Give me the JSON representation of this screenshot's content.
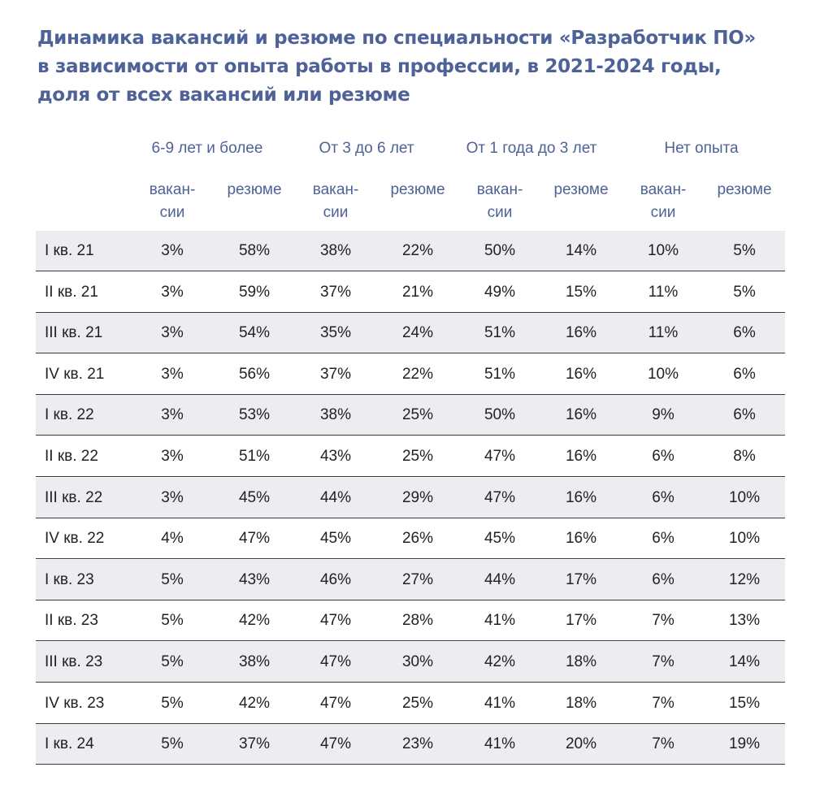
{
  "chart_data": {
    "type": "table",
    "title_lines": [
      "Динамика вакансий и резюме по специальности «Разработчик ПО»",
      "в зависимости от опыта работы в профессии, в 2021-2024 годы,",
      "доля от всех вакансий или резюме"
    ],
    "groups": [
      "6-9 лет и более",
      "От 3 до 6 лет",
      "От 1 года до 3 лет",
      "Нет опыта"
    ],
    "subheaders": [
      "вакан-\nсии",
      "резюме"
    ],
    "rows": [
      {
        "label": "I кв. 21",
        "values": [
          "3%",
          "58%",
          "38%",
          "22%",
          "50%",
          "14%",
          "10%",
          "5%"
        ]
      },
      {
        "label": "II кв. 21",
        "values": [
          "3%",
          "59%",
          "37%",
          "21%",
          "49%",
          "15%",
          "11%",
          "5%"
        ]
      },
      {
        "label": "III кв. 21",
        "values": [
          "3%",
          "54%",
          "35%",
          "24%",
          "51%",
          "16%",
          "11%",
          "6%"
        ]
      },
      {
        "label": "IV кв. 21",
        "values": [
          "3%",
          "56%",
          "37%",
          "22%",
          "51%",
          "16%",
          "10%",
          "6%"
        ]
      },
      {
        "label": "I кв. 22",
        "values": [
          "3%",
          "53%",
          "38%",
          "25%",
          "50%",
          "16%",
          "9%",
          "6%"
        ]
      },
      {
        "label": "II кв. 22",
        "values": [
          "3%",
          "51%",
          "43%",
          "25%",
          "47%",
          "16%",
          "6%",
          "8%"
        ]
      },
      {
        "label": "III кв. 22",
        "values": [
          "3%",
          "45%",
          "44%",
          "29%",
          "47%",
          "16%",
          "6%",
          "10%"
        ]
      },
      {
        "label": "IV кв. 22",
        "values": [
          "4%",
          "47%",
          "45%",
          "26%",
          "45%",
          "16%",
          "6%",
          "10%"
        ]
      },
      {
        "label": "I кв. 23",
        "values": [
          "5%",
          "43%",
          "46%",
          "27%",
          "44%",
          "17%",
          "6%",
          "12%"
        ]
      },
      {
        "label": "II кв. 23",
        "values": [
          "5%",
          "42%",
          "47%",
          "28%",
          "41%",
          "17%",
          "7%",
          "13%"
        ]
      },
      {
        "label": "III кв. 23",
        "values": [
          "5%",
          "38%",
          "47%",
          "30%",
          "42%",
          "18%",
          "7%",
          "14%"
        ]
      },
      {
        "label": "IV кв. 23",
        "values": [
          "5%",
          "42%",
          "47%",
          "25%",
          "41%",
          "18%",
          "7%",
          "15%"
        ]
      },
      {
        "label": "I кв. 24",
        "values": [
          "5%",
          "37%",
          "47%",
          "23%",
          "41%",
          "20%",
          "7%",
          "19%"
        ]
      }
    ]
  },
  "colors": {
    "title": "#4f6298",
    "header": "#4f6298",
    "row_shade": "#ececf1",
    "rule": "#3a3a3a",
    "text": "#222222"
  }
}
